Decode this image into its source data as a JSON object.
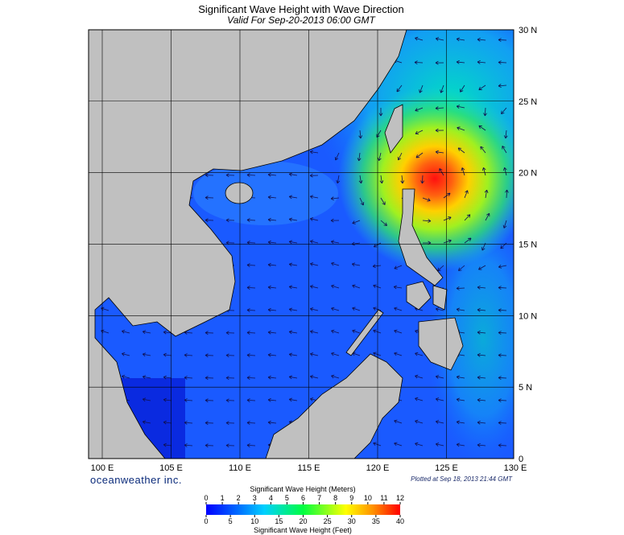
{
  "header": {
    "title": "Significant Wave Height with Wave Direction",
    "subtitle": "Valid For Sep-20-2013 06:00 GMT"
  },
  "map": {
    "grid": true,
    "lat_ticks": [
      {
        "value": 30,
        "label": "30 N"
      },
      {
        "value": 25,
        "label": "25 N"
      },
      {
        "value": 20,
        "label": "20 N"
      },
      {
        "value": 15,
        "label": "15 N"
      },
      {
        "value": 10,
        "label": "10 N"
      },
      {
        "value": 5,
        "label": "5 N"
      },
      0
    ],
    "lon_ticks": [
      {
        "value": 100,
        "label": "100 E"
      },
      {
        "value": 105,
        "label": "105 E"
      },
      {
        "value": 110,
        "label": "110 E"
      },
      {
        "value": 115,
        "label": "115 E"
      },
      {
        "value": 120,
        "label": "120 E"
      },
      {
        "value": 125,
        "label": "125 E"
      },
      {
        "value": 130,
        "label": "130 E"
      }
    ]
  },
  "footer": {
    "brand": "oceanweather inc.",
    "plotted": "Plotted at Sep 18, 2013 21:44 GMT"
  },
  "colorbar": {
    "meters_title": "Significant Wave Height (Meters)",
    "meters_ticks": [
      0,
      1,
      2,
      3,
      4,
      5,
      6,
      7,
      8,
      9,
      10,
      11,
      12
    ],
    "feet_title": "Significant Wave Height (Feet)",
    "feet_ticks": [
      0,
      5,
      10,
      15,
      20,
      25,
      30,
      35,
      40
    ]
  }
}
